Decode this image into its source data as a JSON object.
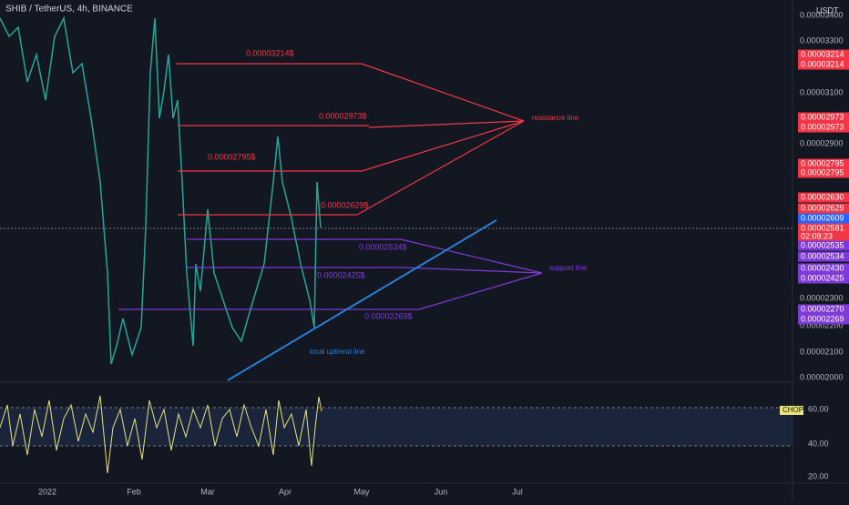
{
  "header": {
    "symbol": "SHIB / TetherUS, 4h, BINANCE",
    "currency": "USDT"
  },
  "price_axis": [
    "0.00003400",
    "0.00003300",
    "0.00003100",
    "0.00002900",
    "0.00002300",
    "0.00002200",
    "0.00002100",
    "0.00002000"
  ],
  "badges": [
    {
      "text": "0.00003214",
      "color": "#f23645"
    },
    {
      "text": "0.00003214",
      "color": "#f23645"
    },
    {
      "text": "0.00002973",
      "color": "#f23645"
    },
    {
      "text": "0.00002973",
      "color": "#f23645"
    },
    {
      "text": "0.00002795",
      "color": "#f23645"
    },
    {
      "text": "0.00002795",
      "color": "#f23645"
    },
    {
      "text": "0.00002630",
      "color": "#f23645"
    },
    {
      "text": "0.00002629",
      "color": "#f23645"
    },
    {
      "text": "0.00002609",
      "color": "#2962ff"
    },
    {
      "text": "0.00002581",
      "color": "#f23645"
    },
    {
      "text": "02:08:23",
      "color": "#f23645"
    },
    {
      "text": "0.00002535",
      "color": "#7e3ad6"
    },
    {
      "text": "0.00002534",
      "color": "#7e3ad6"
    },
    {
      "text": "0.00002430",
      "color": "#7e3ad6"
    },
    {
      "text": "0.00002425",
      "color": "#7e3ad6"
    },
    {
      "text": "0.00002270",
      "color": "#7e3ad6"
    },
    {
      "text": "0.00002269",
      "color": "#7e3ad6"
    }
  ],
  "resistance": {
    "label": "resistance line",
    "levels": [
      "0.00003214$",
      "0.00002973$",
      "0.00002795$",
      "0.00002629$"
    ]
  },
  "support": {
    "label": "support line",
    "levels": [
      "0.00002534$",
      "0.00002425$",
      "0.00002269$"
    ]
  },
  "uptrend": {
    "label": "local uptrend line"
  },
  "indicator": {
    "name": "CHOP",
    "axis": [
      "60.00",
      "40.00",
      "20.00"
    ]
  },
  "time_axis": [
    "2022",
    "Feb",
    "Mar",
    "Apr",
    "May",
    "Jun",
    "Jul"
  ]
}
